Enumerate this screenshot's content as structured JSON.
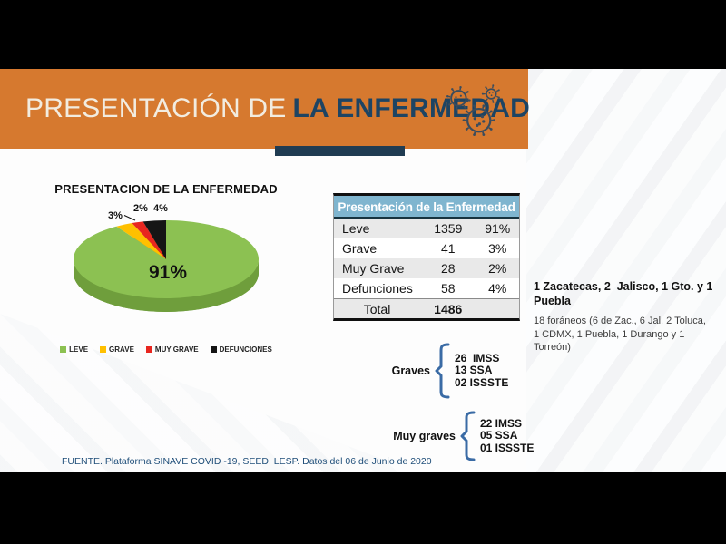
{
  "header": {
    "title_light": "PRESENTACIÓN DE",
    "title_bold": "LA ENFERMEDAD"
  },
  "chart": {
    "title": "PRESENTACION DE LA ENFERMEDAD",
    "labels": {
      "leve": "91%",
      "grave": "3%",
      "muy_grave": "2%",
      "defunciones": "4%"
    }
  },
  "chart_data": {
    "type": "pie",
    "style": "3d",
    "title": "PRESENTACION DE LA ENFERMEDAD",
    "categories": [
      "LEVE",
      "GRAVE",
      "MUY GRAVE",
      "DEFUNCIONES"
    ],
    "values": [
      91,
      3,
      2,
      4
    ],
    "counts": [
      1359,
      41,
      28,
      58
    ],
    "total": 1486,
    "colors": [
      "#8CC152",
      "#FFC000",
      "#E8261F",
      "#151515"
    ],
    "side_color": "#6F9E3C",
    "legend_position": "bottom",
    "start_angle": "top",
    "direction": "clockwise"
  },
  "table": {
    "title": "Presentación de la Enfermedad",
    "rows": [
      {
        "label": "Leve",
        "value": "1359",
        "pct": "91%"
      },
      {
        "label": "Grave",
        "value": "41",
        "pct": "3%"
      },
      {
        "label": "Muy Grave",
        "value": "28",
        "pct": "2%"
      },
      {
        "label": "Defunciones",
        "value": "58",
        "pct": "4%"
      }
    ],
    "total_label": "Total",
    "total_value": "1486"
  },
  "notes": {
    "states_bold": "1 Zacatecas, 2  Jalisco, 1 Gto. y 1 Puebla",
    "foraneos": "18 foráneos (6 de Zac., 6 Jal. 2 Toluca, 1 CDMX, 1 Puebla, 1 Durango y 1 Torreón)"
  },
  "graves": {
    "label": "Graves",
    "items": [
      "26  IMSS",
      "13 SSA",
      "02 ISSSTE"
    ]
  },
  "muy_graves": {
    "label": "Muy graves",
    "items": [
      "22 IMSS",
      "05 SSA",
      "01 ISSSTE"
    ]
  },
  "footer": {
    "source": "FUENTE. Plataforma SINAVE COVID -19, SEED, LESP. Datos del 06 de Junio de 2020"
  },
  "colors": {
    "header_orange": "#D6792F",
    "title_navy": "#1D4463",
    "accent_bar": "#203C52",
    "table_header_bg": "#7FB5CF",
    "row_band": "#E9E9E9",
    "bracket_blue": "#3A6BA5",
    "footer_blue": "#1F4E79",
    "virus_icon": "#3B4C5C"
  }
}
